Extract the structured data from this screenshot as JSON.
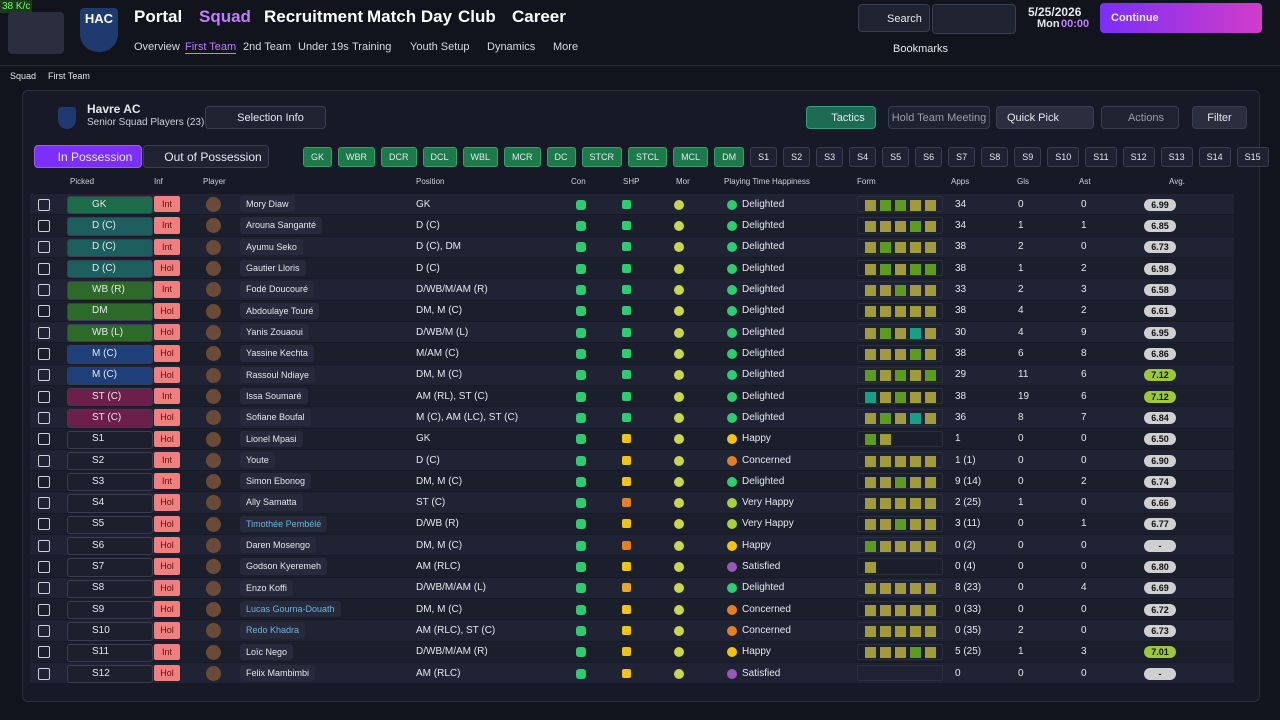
{
  "speed": "38 K/c",
  "logo": "HAC",
  "nav": [
    "Portal",
    "Squad",
    "Recruitment",
    "Match Day",
    "Club",
    "Career"
  ],
  "subnav": [
    "Overview",
    "First Team",
    "2nd Team",
    "Under 19s",
    "Training",
    "Youth Setup",
    "Dynamics",
    "More"
  ],
  "search": "Search",
  "date": "5/25/2026",
  "day": "Mon",
  "time": "00:00",
  "continue": "Continue",
  "bookmarks": "Bookmarks",
  "breadcrumb": [
    "Squad",
    "First Team"
  ],
  "team": {
    "name": "Havre AC",
    "subtitle": "Senior Squad Players (23)"
  },
  "buttons": {
    "selection": "Selection Info",
    "tactics": "Tactics",
    "meeting": "Hold Team Meeting",
    "quick": "Quick Pick",
    "actions": "Actions",
    "filter": "Filter"
  },
  "tabs": [
    "In Possession",
    "Out of Possession"
  ],
  "position_chips": [
    "GK",
    "WBR",
    "DCR",
    "DCL",
    "WBL",
    "MCR",
    "DC",
    "STCR",
    "STCL",
    "MCL",
    "DM"
  ],
  "sub_chips": [
    "S1",
    "S2",
    "S3",
    "S4",
    "S5",
    "S6",
    "S7",
    "S8",
    "S9",
    "S10",
    "S11",
    "S12",
    "S13",
    "S14",
    "S15"
  ],
  "columns": [
    "Picked",
    "Inf",
    "Player",
    "Position",
    "Con",
    "SHP",
    "Mor",
    "Playing Time Happiness",
    "Form",
    "Apps",
    "Gls",
    "Ast",
    "Avg."
  ],
  "rows": [
    {
      "picked": "GK",
      "picked_color": "#1e6b4a",
      "inf": "Int",
      "name": "Mory Diaw",
      "position": "GK",
      "shp_color": "#2ecc71",
      "happiness": "Delighted",
      "happiness_color": "#2ecc71",
      "form": [
        "#a19b3c",
        "#5e9c1f",
        "#5e9c1f",
        "#a19b3c",
        "#a19b3c"
      ],
      "apps": 34,
      "gls": 0,
      "ast": 0,
      "avg": "6.99"
    },
    {
      "picked": "D (C)",
      "picked_color": "#1d5e5e",
      "inf": "Int",
      "name": "Arouna Sanganté",
      "position": "D (C)",
      "shp_color": "#2ecc71",
      "happiness": "Delighted",
      "happiness_color": "#2ecc71",
      "form": [
        "#a19b3c",
        "#a19b3c",
        "#a19b3c",
        "#5e9c1f",
        "#a19b3c"
      ],
      "apps": 34,
      "gls": 1,
      "ast": 1,
      "avg": "6.85"
    },
    {
      "picked": "D (C)",
      "picked_color": "#1d5e5e",
      "inf": "Int",
      "name": "Ayumu Seko",
      "position": "D (C), DM",
      "shp_color": "#2ecc71",
      "happiness": "Delighted",
      "happiness_color": "#2ecc71",
      "form": [
        "#a19b3c",
        "#5e9c1f",
        "#a19b3c",
        "#a19b3c",
        "#a19b3c"
      ],
      "apps": 38,
      "gls": 2,
      "ast": 0,
      "avg": "6.73"
    },
    {
      "picked": "D (C)",
      "picked_color": "#1d5e5e",
      "inf": "Hol",
      "name": "Gautier Lloris",
      "position": "D (C)",
      "shp_color": "#2ecc71",
      "happiness": "Delighted",
      "happiness_color": "#2ecc71",
      "form": [
        "#a19b3c",
        "#5e9c1f",
        "#a19b3c",
        "#5e9c1f",
        "#5e9c1f"
      ],
      "apps": 38,
      "gls": 1,
      "ast": 2,
      "avg": "6.98"
    },
    {
      "picked": "WB (R)",
      "picked_color": "#2d6a2a",
      "inf": "Int",
      "name": "Fodé Doucouré",
      "position": "D/WB/M/AM (R)",
      "shp_color": "#2ecc71",
      "happiness": "Delighted",
      "happiness_color": "#2ecc71",
      "form": [
        "#a19b3c",
        "#a19b3c",
        "#5e9c1f",
        "#a19b3c",
        "#a19b3c"
      ],
      "apps": 33,
      "gls": 2,
      "ast": 3,
      "avg": "6.58"
    },
    {
      "picked": "DM",
      "picked_color": "#2d6a2a",
      "inf": "Hol",
      "name": "Abdoulaye Touré",
      "position": "DM, M (C)",
      "shp_color": "#2ecc71",
      "happiness": "Delighted",
      "happiness_color": "#2ecc71",
      "form": [
        "#a19b3c",
        "#a19b3c",
        "#a19b3c",
        "#a19b3c",
        "#a19b3c"
      ],
      "apps": 38,
      "gls": 4,
      "ast": 2,
      "avg": "6.61"
    },
    {
      "picked": "WB (L)",
      "picked_color": "#2d6a2a",
      "inf": "Hol",
      "name": "Yanis Zouaoui",
      "position": "D/WB/M (L)",
      "shp_color": "#2ecc71",
      "happiness": "Delighted",
      "happiness_color": "#2ecc71",
      "form": [
        "#a19b3c",
        "#5e9c1f",
        "#a19b3c",
        "#16a085",
        "#a19b3c"
      ],
      "apps": 30,
      "gls": 4,
      "ast": 9,
      "avg": "6.95"
    },
    {
      "picked": "M (C)",
      "picked_color": "#1f3f7a",
      "inf": "Hol",
      "name": "Yassine Kechta",
      "position": "M/AM (C)",
      "shp_color": "#2ecc71",
      "happiness": "Delighted",
      "happiness_color": "#2ecc71",
      "form": [
        "#a19b3c",
        "#a19b3c",
        "#a19b3c",
        "#5e9c1f",
        "#a19b3c"
      ],
      "apps": 38,
      "gls": 6,
      "ast": 8,
      "avg": "6.86"
    },
    {
      "picked": "M (C)",
      "picked_color": "#1f3f7a",
      "inf": "Hol",
      "name": "Rassoul Ndiaye",
      "position": "DM, M (C)",
      "shp_color": "#2ecc71",
      "happiness": "Delighted",
      "happiness_color": "#2ecc71",
      "form": [
        "#5e9c1f",
        "#a19b3c",
        "#5e9c1f",
        "#a19b3c",
        "#5e9c1f"
      ],
      "apps": 29,
      "gls": 11,
      "ast": 6,
      "avg": "7.12"
    },
    {
      "picked": "ST (C)",
      "picked_color": "#6b1f4a",
      "inf": "Int",
      "name": "Issa Soumaré",
      "position": "AM (RL), ST (C)",
      "shp_color": "#2ecc71",
      "happiness": "Delighted",
      "happiness_color": "#2ecc71",
      "form": [
        "#16a085",
        "#a19b3c",
        "#5e9c1f",
        "#a19b3c",
        "#a19b3c"
      ],
      "apps": 38,
      "gls": 19,
      "ast": 6,
      "avg": "7.12"
    },
    {
      "picked": "ST (C)",
      "picked_color": "#6b1f4a",
      "inf": "Hol",
      "name": "Sofiane Boufal",
      "position": "M (C), AM (LC), ST (C)",
      "shp_color": "#2ecc71",
      "happiness": "Delighted",
      "happiness_color": "#2ecc71",
      "form": [
        "#a19b3c",
        "#5e9c1f",
        "#a19b3c",
        "#16a085",
        "#a19b3c"
      ],
      "apps": 36,
      "gls": 8,
      "ast": 7,
      "avg": "6.84"
    },
    {
      "picked": "S1",
      "picked_color": "#1c1f2c",
      "inf": "Hol",
      "name": "Lionel Mpasi",
      "position": "GK",
      "shp_color": "#f1c40f",
      "happiness": "Happy",
      "happiness_color": "#f1c40f",
      "form": [
        "#5e9c1f",
        "#a19b3c"
      ],
      "apps": 1,
      "gls": 0,
      "ast": 0,
      "avg": "6.50"
    },
    {
      "picked": "S2",
      "picked_color": "#1c1f2c",
      "inf": "Int",
      "name": "Youte",
      "position": "D (C)",
      "shp_color": "#f1c40f",
      "happiness": "Concerned",
      "happiness_color": "#e67e22",
      "form": [
        "#a19b3c",
        "#a19b3c",
        "#a19b3c",
        "#a19b3c",
        "#a19b3c"
      ],
      "apps": "1 (1)",
      "gls": 0,
      "ast": 0,
      "avg": "6.90"
    },
    {
      "picked": "S3",
      "picked_color": "#1c1f2c",
      "inf": "Int",
      "name": "Simon Ebonog",
      "position": "DM, M (C)",
      "shp_color": "#f1c40f",
      "happiness": "Delighted",
      "happiness_color": "#2ecc71",
      "form": [
        "#a19b3c",
        "#a19b3c",
        "#5e9c1f",
        "#a19b3c",
        "#a19b3c"
      ],
      "apps": "9 (14)",
      "gls": 0,
      "ast": 2,
      "avg": "6.74"
    },
    {
      "picked": "S4",
      "picked_color": "#1c1f2c",
      "inf": "Hol",
      "name": "Ally Samatta",
      "position": "ST (C)",
      "shp_color": "#e67e22",
      "happiness": "Very Happy",
      "happiness_color": "#a4d13c",
      "form": [
        "#a19b3c",
        "#a19b3c",
        "#a19b3c",
        "#a19b3c",
        "#a19b3c"
      ],
      "apps": "2 (25)",
      "gls": 1,
      "ast": 0,
      "avg": "6.66"
    },
    {
      "picked": "S5",
      "picked_color": "#1c1f2c",
      "inf": "Hol",
      "name": "Timothée Pembélé",
      "name_color": "#6fb3e0",
      "position": "D/WB (R)",
      "shp_color": "#f1c40f",
      "happiness": "Very Happy",
      "happiness_color": "#a4d13c",
      "form": [
        "#a19b3c",
        "#a19b3c",
        "#5e9c1f",
        "#a19b3c",
        "#a19b3c"
      ],
      "apps": "3 (11)",
      "gls": 0,
      "ast": 1,
      "avg": "6.77"
    },
    {
      "picked": "S6",
      "picked_color": "#1c1f2c",
      "inf": "Hol",
      "name": "Daren Mosengo",
      "position": "DM, M (C)",
      "shp_color": "#e67e22",
      "happiness": "Happy",
      "happiness_color": "#f1c40f",
      "form": [
        "#5e9c1f",
        "#a19b3c",
        "#a19b3c",
        "#a19b3c",
        "#a19b3c"
      ],
      "apps": "0 (2)",
      "gls": 0,
      "ast": 0,
      "avg": "-"
    },
    {
      "picked": "S7",
      "picked_color": "#1c1f2c",
      "inf": "Hol",
      "name": "Godson Kyeremeh",
      "position": "AM (RLC)",
      "shp_color": "#f1c40f",
      "happiness": "Satisfied",
      "happiness_color": "#9b59b6",
      "form": [
        "#a19b3c"
      ],
      "apps": "0 (4)",
      "gls": 0,
      "ast": 0,
      "avg": "6.80"
    },
    {
      "picked": "S8",
      "picked_color": "#1c1f2c",
      "inf": "Hol",
      "name": "Enzo Koffi",
      "position": "D/WB/M/AM (L)",
      "shp_color": "#e6a822",
      "happiness": "Delighted",
      "happiness_color": "#2ecc71",
      "form": [
        "#a19b3c",
        "#a19b3c",
        "#a19b3c",
        "#a19b3c",
        "#a19b3c"
      ],
      "apps": "8 (23)",
      "gls": 0,
      "ast": 4,
      "avg": "6.69"
    },
    {
      "picked": "S9",
      "picked_color": "#1c1f2c",
      "inf": "Hol",
      "name": "Lucas Gourna-Douath",
      "name_color": "#6fb3e0",
      "position": "DM, M (C)",
      "shp_color": "#f1c40f",
      "happiness": "Concerned",
      "happiness_color": "#e67e22",
      "form": [
        "#a19b3c",
        "#a19b3c",
        "#a19b3c",
        "#a19b3c",
        "#a19b3c"
      ],
      "apps": "0 (33)",
      "gls": 0,
      "ast": 0,
      "avg": "6.72"
    },
    {
      "picked": "S10",
      "picked_color": "#1c1f2c",
      "inf": "Hol",
      "name": "Redo Khadra",
      "name_color": "#6fb3e0",
      "position": "AM (RLC), ST (C)",
      "shp_color": "#f1c40f",
      "happiness": "Concerned",
      "happiness_color": "#e67e22",
      "form": [
        "#a19b3c",
        "#a19b3c",
        "#a19b3c",
        "#a19b3c",
        "#a19b3c"
      ],
      "apps": "0 (35)",
      "gls": 2,
      "ast": 0,
      "avg": "6.73"
    },
    {
      "picked": "S11",
      "picked_color": "#1c1f2c",
      "inf": "Int",
      "name": "Loïc Nego",
      "position": "D/WB/M/AM (R)",
      "shp_color": "#f1c40f",
      "happiness": "Happy",
      "happiness_color": "#f1c40f",
      "form": [
        "#a19b3c",
        "#a19b3c",
        "#a19b3c",
        "#5e9c1f",
        "#a19b3c"
      ],
      "apps": "5 (25)",
      "gls": 1,
      "ast": 3,
      "avg": "7.01"
    },
    {
      "picked": "S12",
      "picked_color": "#1c1f2c",
      "inf": "Hol",
      "name": "Felix Mambimbi",
      "position": "AM (RLC)",
      "shp_color": "#f1c40f",
      "happiness": "Satisfied",
      "happiness_color": "#9b59b6",
      "form": [],
      "apps": 0,
      "gls": 0,
      "ast": 0,
      "avg": "-"
    }
  ]
}
